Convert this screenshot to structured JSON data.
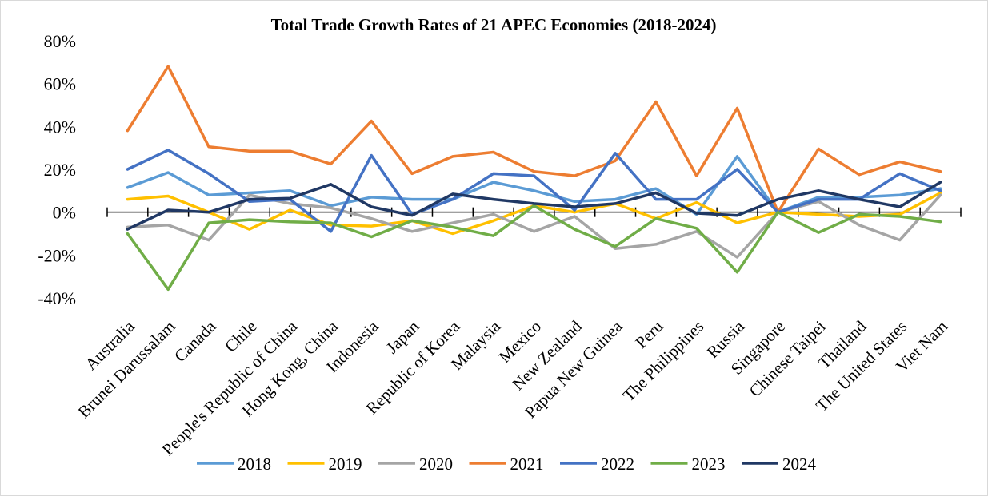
{
  "chart_data": {
    "type": "line",
    "title": "Total Trade Growth Rates of 21 APEC Economies (2018-2024)",
    "xlabel": "",
    "ylabel": "",
    "ylim": [
      -40,
      80
    ],
    "yticks": [
      80,
      60,
      40,
      20,
      0,
      -20,
      -40
    ],
    "ytick_labels": [
      "80%",
      "60%",
      "40%",
      "20%",
      "0%",
      "-20%",
      "-40%"
    ],
    "legend_position": "bottom",
    "grid": false,
    "categories": [
      "Australia",
      "Brunei Darussalam",
      "Canada",
      "Chile",
      "People's Republic of China",
      "Hong Kong, China",
      "Indonesia",
      "Japan",
      "Republic of Korea",
      "Malaysia",
      "Mexico",
      "New Zealand",
      "Papua New Guinea",
      "Peru",
      "The Philippines",
      "Russia",
      "Singapore",
      "Chinese Taipei",
      "Thailand",
      "The United States",
      "Viet Nam"
    ],
    "series": [
      {
        "name": "2018",
        "color": "#5b9bd5",
        "values": [
          11.5,
          18.5,
          8,
          9,
          10,
          3,
          7,
          6,
          6,
          14,
          10,
          5,
          6,
          11,
          -1,
          26,
          0,
          7,
          7,
          8,
          11
        ]
      },
      {
        "name": "2019",
        "color": "#ffc000",
        "values": [
          6,
          7.5,
          0,
          -8,
          1,
          -6,
          -6.5,
          -4,
          -10,
          -4,
          3,
          0,
          4,
          -3,
          4.5,
          -5,
          0,
          -1,
          -2,
          -1,
          9
        ]
      },
      {
        "name": "2020",
        "color": "#a5a5a5",
        "values": [
          -7,
          -6,
          -13,
          8,
          4,
          2,
          -3,
          -9,
          -5,
          -1,
          -9,
          -2,
          -17,
          -15,
          -9,
          -21,
          0,
          5,
          -6,
          -13,
          8
        ]
      },
      {
        "name": "2021",
        "color": "#ed7d31",
        "values": [
          38,
          68,
          30.5,
          28.5,
          28.5,
          22.5,
          42.5,
          18,
          26,
          28,
          19,
          17,
          24,
          51.5,
          17,
          48.5,
          0,
          29.5,
          17.5,
          23.5,
          19
        ]
      },
      {
        "name": "2022",
        "color": "#4472c4",
        "values": [
          20,
          29,
          18,
          5,
          6,
          -9,
          26.5,
          -1,
          6,
          18,
          17,
          1,
          27.5,
          6,
          6,
          20,
          0,
          6,
          6,
          18,
          10
        ]
      },
      {
        "name": "2023",
        "color": "#70ad47",
        "values": [
          -10,
          -36,
          -5,
          -3.5,
          -4.5,
          -5,
          -11.5,
          -4,
          -7,
          -11,
          3,
          -8,
          -16,
          -3,
          -7.5,
          -28,
          0,
          -9.5,
          -1,
          -2,
          -4.5
        ]
      },
      {
        "name": "2024",
        "color": "#203864",
        "values": [
          -8,
          1,
          0,
          6,
          6.5,
          13,
          2.5,
          -1.5,
          8.5,
          6,
          4,
          2.5,
          4,
          9,
          -0.5,
          -1.5,
          6,
          10,
          6,
          2.5,
          14
        ]
      }
    ]
  }
}
